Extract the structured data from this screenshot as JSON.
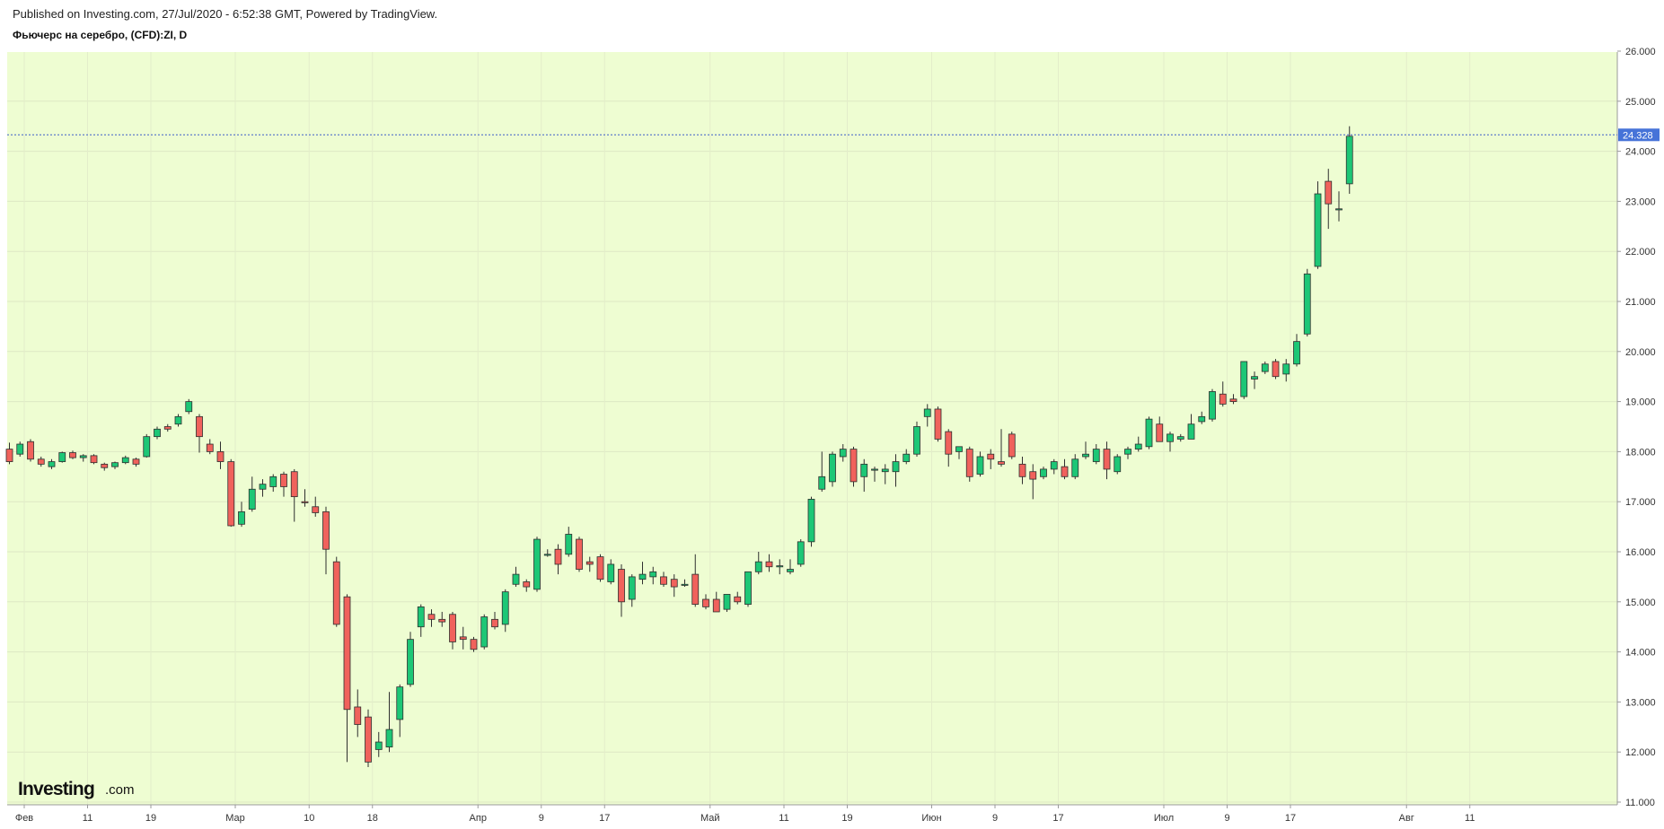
{
  "header": {
    "published": "Published on Investing.com, 27/Jul/2020 - 6:52:38 GMT, Powered by TradingView.",
    "symbol": "Фьючерс на серебро, (CFD):ZI, D"
  },
  "logo": {
    "main": "Investing",
    "sub": ".com"
  },
  "colors": {
    "background": "#eefdd2",
    "up": "#1dc776",
    "down": "#f0625c",
    "wick": "#2f2f2f",
    "last_price_line": "#3d5fc8",
    "last_price_tag": "#4673d8"
  },
  "last_price": {
    "value": 24.328,
    "label": "24.328"
  },
  "chart_data": {
    "type": "candlestick",
    "title": "Фьючерс на серебро, (CFD):ZI, D",
    "ylim": [
      11.0,
      26.0
    ],
    "y_ticks": [
      "11.000",
      "12.000",
      "13.000",
      "14.000",
      "15.000",
      "16.000",
      "17.000",
      "18.000",
      "19.000",
      "20.000",
      "21.000",
      "22.000",
      "23.000",
      "24.000",
      "25.000",
      "26.000"
    ],
    "x_ticks": [
      {
        "index": 0,
        "label": "Фев"
      },
      {
        "index": 6,
        "label": "11"
      },
      {
        "index": 12,
        "label": "19"
      },
      {
        "index": 20,
        "label": "Мар"
      },
      {
        "index": 27,
        "label": "10"
      },
      {
        "index": 33,
        "label": "18"
      },
      {
        "index": 43,
        "label": "Апр"
      },
      {
        "index": 49,
        "label": "9"
      },
      {
        "index": 55,
        "label": "17"
      },
      {
        "index": 65,
        "label": "Май"
      },
      {
        "index": 72,
        "label": "11"
      },
      {
        "index": 78,
        "label": "19"
      },
      {
        "index": 86,
        "label": "Июн"
      },
      {
        "index": 92,
        "label": "9"
      },
      {
        "index": 98,
        "label": "17"
      },
      {
        "index": 108,
        "label": "Июл"
      },
      {
        "index": 114,
        "label": "9"
      },
      {
        "index": 120,
        "label": "17"
      },
      {
        "index": 131,
        "label": "Авг"
      },
      {
        "index": 137,
        "label": "11"
      }
    ],
    "candles": [
      {
        "o": 18.05,
        "h": 18.18,
        "l": 17.75,
        "c": 17.8
      },
      {
        "o": 17.95,
        "h": 18.2,
        "l": 17.9,
        "c": 18.15
      },
      {
        "o": 18.2,
        "h": 18.25,
        "l": 17.8,
        "c": 17.85
      },
      {
        "o": 17.85,
        "h": 17.9,
        "l": 17.7,
        "c": 17.75
      },
      {
        "o": 17.7,
        "h": 17.85,
        "l": 17.65,
        "c": 17.8
      },
      {
        "o": 17.8,
        "h": 18.0,
        "l": 17.78,
        "c": 17.98
      },
      {
        "o": 17.98,
        "h": 18.02,
        "l": 17.85,
        "c": 17.88
      },
      {
        "o": 17.88,
        "h": 17.95,
        "l": 17.8,
        "c": 17.92
      },
      {
        "o": 17.92,
        "h": 17.95,
        "l": 17.75,
        "c": 17.78
      },
      {
        "o": 17.75,
        "h": 17.78,
        "l": 17.62,
        "c": 17.68
      },
      {
        "o": 17.7,
        "h": 17.8,
        "l": 17.65,
        "c": 17.78
      },
      {
        "o": 17.78,
        "h": 17.92,
        "l": 17.75,
        "c": 17.88
      },
      {
        "o": 17.85,
        "h": 17.88,
        "l": 17.7,
        "c": 17.75
      },
      {
        "o": 17.9,
        "h": 18.35,
        "l": 17.88,
        "c": 18.3
      },
      {
        "o": 18.3,
        "h": 18.5,
        "l": 18.25,
        "c": 18.45
      },
      {
        "o": 18.5,
        "h": 18.55,
        "l": 18.4,
        "c": 18.45
      },
      {
        "o": 18.55,
        "h": 18.75,
        "l": 18.5,
        "c": 18.7
      },
      {
        "o": 18.8,
        "h": 19.05,
        "l": 18.75,
        "c": 19.0
      },
      {
        "o": 18.7,
        "h": 18.75,
        "l": 17.98,
        "c": 18.3
      },
      {
        "o": 18.15,
        "h": 18.25,
        "l": 17.95,
        "c": 18.0
      },
      {
        "o": 18.0,
        "h": 18.2,
        "l": 17.65,
        "c": 17.8
      },
      {
        "o": 17.8,
        "h": 17.85,
        "l": 16.5,
        "c": 16.52
      },
      {
        "o": 16.55,
        "h": 17.0,
        "l": 16.5,
        "c": 16.8
      },
      {
        "o": 16.85,
        "h": 17.5,
        "l": 16.8,
        "c": 17.25
      },
      {
        "o": 17.25,
        "h": 17.45,
        "l": 17.1,
        "c": 17.35
      },
      {
        "o": 17.3,
        "h": 17.55,
        "l": 17.2,
        "c": 17.5
      },
      {
        "o": 17.55,
        "h": 17.6,
        "l": 17.1,
        "c": 17.3
      },
      {
        "o": 17.6,
        "h": 17.65,
        "l": 16.6,
        "c": 17.1
      },
      {
        "o": 17.0,
        "h": 17.25,
        "l": 16.9,
        "c": 16.98
      },
      {
        "o": 16.9,
        "h": 17.1,
        "l": 16.7,
        "c": 16.78
      },
      {
        "o": 16.8,
        "h": 16.9,
        "l": 15.55,
        "c": 16.05
      },
      {
        "o": 15.8,
        "h": 15.9,
        "l": 14.5,
        "c": 14.55
      },
      {
        "o": 15.1,
        "h": 15.15,
        "l": 11.8,
        "c": 12.85
      },
      {
        "o": 12.9,
        "h": 13.25,
        "l": 12.3,
        "c": 12.55
      },
      {
        "o": 12.7,
        "h": 12.85,
        "l": 11.7,
        "c": 11.8
      },
      {
        "o": 12.05,
        "h": 12.4,
        "l": 11.9,
        "c": 12.2
      },
      {
        "o": 12.1,
        "h": 13.2,
        "l": 12.0,
        "c": 12.45
      },
      {
        "o": 12.65,
        "h": 13.35,
        "l": 12.3,
        "c": 13.3
      },
      {
        "o": 13.35,
        "h": 14.4,
        "l": 13.3,
        "c": 14.25
      },
      {
        "o": 14.5,
        "h": 14.95,
        "l": 14.3,
        "c": 14.9
      },
      {
        "o": 14.75,
        "h": 14.85,
        "l": 14.5,
        "c": 14.65
      },
      {
        "o": 14.65,
        "h": 14.8,
        "l": 14.5,
        "c": 14.6
      },
      {
        "o": 14.75,
        "h": 14.8,
        "l": 14.05,
        "c": 14.2
      },
      {
        "o": 14.3,
        "h": 14.5,
        "l": 14.05,
        "c": 14.25
      },
      {
        "o": 14.25,
        "h": 14.3,
        "l": 14.0,
        "c": 14.05
      },
      {
        "o": 14.1,
        "h": 14.75,
        "l": 14.05,
        "c": 14.7
      },
      {
        "o": 14.65,
        "h": 14.8,
        "l": 14.45,
        "c": 14.5
      },
      {
        "o": 14.55,
        "h": 15.25,
        "l": 14.4,
        "c": 15.2
      },
      {
        "o": 15.35,
        "h": 15.7,
        "l": 15.3,
        "c": 15.55
      },
      {
        "o": 15.4,
        "h": 15.45,
        "l": 15.2,
        "c": 15.3
      },
      {
        "o": 15.25,
        "h": 16.3,
        "l": 15.2,
        "c": 16.25
      },
      {
        "o": 15.95,
        "h": 16.05,
        "l": 15.9,
        "c": 15.95
      },
      {
        "o": 16.05,
        "h": 16.15,
        "l": 15.55,
        "c": 15.75
      },
      {
        "o": 15.95,
        "h": 16.5,
        "l": 15.9,
        "c": 16.35
      },
      {
        "o": 16.25,
        "h": 16.3,
        "l": 15.6,
        "c": 15.65
      },
      {
        "o": 15.8,
        "h": 15.9,
        "l": 15.6,
        "c": 15.75
      },
      {
        "o": 15.9,
        "h": 15.95,
        "l": 15.4,
        "c": 15.45
      },
      {
        "o": 15.4,
        "h": 15.85,
        "l": 15.35,
        "c": 15.75
      },
      {
        "o": 15.65,
        "h": 15.75,
        "l": 14.7,
        "c": 15.0
      },
      {
        "o": 15.05,
        "h": 15.55,
        "l": 14.9,
        "c": 15.5
      },
      {
        "o": 15.45,
        "h": 15.8,
        "l": 15.35,
        "c": 15.55
      },
      {
        "o": 15.5,
        "h": 15.7,
        "l": 15.35,
        "c": 15.6
      },
      {
        "o": 15.5,
        "h": 15.6,
        "l": 15.3,
        "c": 15.35
      },
      {
        "o": 15.45,
        "h": 15.55,
        "l": 15.1,
        "c": 15.3
      },
      {
        "o": 15.35,
        "h": 15.45,
        "l": 15.3,
        "c": 15.35
      },
      {
        "o": 15.55,
        "h": 15.95,
        "l": 14.9,
        "c": 14.95
      },
      {
        "o": 15.05,
        "h": 15.15,
        "l": 14.85,
        "c": 14.9
      },
      {
        "o": 15.05,
        "h": 15.2,
        "l": 14.8,
        "c": 14.8
      },
      {
        "o": 14.85,
        "h": 15.15,
        "l": 14.8,
        "c": 15.15
      },
      {
        "o": 15.1,
        "h": 15.2,
        "l": 14.95,
        "c": 15.0
      },
      {
        "o": 14.95,
        "h": 15.6,
        "l": 14.9,
        "c": 15.6
      },
      {
        "o": 15.6,
        "h": 16.0,
        "l": 15.55,
        "c": 15.8
      },
      {
        "o": 15.8,
        "h": 15.95,
        "l": 15.6,
        "c": 15.7
      },
      {
        "o": 15.7,
        "h": 15.85,
        "l": 15.55,
        "c": 15.72
      },
      {
        "o": 15.6,
        "h": 15.85,
        "l": 15.55,
        "c": 15.65
      },
      {
        "o": 15.75,
        "h": 16.25,
        "l": 15.7,
        "c": 16.2
      },
      {
        "o": 16.2,
        "h": 17.1,
        "l": 16.1,
        "c": 17.05
      },
      {
        "o": 17.25,
        "h": 18.0,
        "l": 17.2,
        "c": 17.5
      },
      {
        "o": 17.4,
        "h": 18.0,
        "l": 17.3,
        "c": 17.95
      },
      {
        "o": 17.9,
        "h": 18.15,
        "l": 17.8,
        "c": 18.05
      },
      {
        "o": 18.05,
        "h": 18.1,
        "l": 17.3,
        "c": 17.4
      },
      {
        "o": 17.5,
        "h": 17.85,
        "l": 17.2,
        "c": 17.75
      },
      {
        "o": 17.65,
        "h": 17.7,
        "l": 17.4,
        "c": 17.65
      },
      {
        "o": 17.6,
        "h": 17.75,
        "l": 17.35,
        "c": 17.65
      },
      {
        "o": 17.6,
        "h": 17.95,
        "l": 17.3,
        "c": 17.8
      },
      {
        "o": 17.8,
        "h": 18.05,
        "l": 17.75,
        "c": 17.95
      },
      {
        "o": 17.95,
        "h": 18.6,
        "l": 17.9,
        "c": 18.5
      },
      {
        "o": 18.7,
        "h": 18.95,
        "l": 18.5,
        "c": 18.85
      },
      {
        "o": 18.85,
        "h": 18.9,
        "l": 18.2,
        "c": 18.25
      },
      {
        "o": 18.4,
        "h": 18.45,
        "l": 17.7,
        "c": 17.95
      },
      {
        "o": 18.0,
        "h": 18.1,
        "l": 17.85,
        "c": 18.1
      },
      {
        "o": 18.05,
        "h": 18.1,
        "l": 17.4,
        "c": 17.5
      },
      {
        "o": 17.55,
        "h": 18.0,
        "l": 17.5,
        "c": 17.9
      },
      {
        "o": 17.95,
        "h": 18.05,
        "l": 17.65,
        "c": 17.85
      },
      {
        "o": 17.8,
        "h": 18.45,
        "l": 17.7,
        "c": 17.75
      },
      {
        "o": 18.35,
        "h": 18.4,
        "l": 17.85,
        "c": 17.9
      },
      {
        "o": 17.75,
        "h": 17.9,
        "l": 17.35,
        "c": 17.5
      },
      {
        "o": 17.6,
        "h": 17.75,
        "l": 17.05,
        "c": 17.45
      },
      {
        "o": 17.5,
        "h": 17.7,
        "l": 17.45,
        "c": 17.65
      },
      {
        "o": 17.65,
        "h": 17.85,
        "l": 17.55,
        "c": 17.8
      },
      {
        "o": 17.7,
        "h": 17.85,
        "l": 17.45,
        "c": 17.5
      },
      {
        "o": 17.5,
        "h": 17.95,
        "l": 17.45,
        "c": 17.85
      },
      {
        "o": 17.9,
        "h": 18.2,
        "l": 17.85,
        "c": 17.95
      },
      {
        "o": 17.8,
        "h": 18.15,
        "l": 17.75,
        "c": 18.05
      },
      {
        "o": 18.05,
        "h": 18.2,
        "l": 17.45,
        "c": 17.65
      },
      {
        "o": 17.6,
        "h": 17.95,
        "l": 17.55,
        "c": 17.9
      },
      {
        "o": 17.95,
        "h": 18.1,
        "l": 17.85,
        "c": 18.05
      },
      {
        "o": 18.05,
        "h": 18.3,
        "l": 18.0,
        "c": 18.15
      },
      {
        "o": 18.1,
        "h": 18.7,
        "l": 18.05,
        "c": 18.65
      },
      {
        "o": 18.55,
        "h": 18.7,
        "l": 18.2,
        "c": 18.2
      },
      {
        "o": 18.2,
        "h": 18.4,
        "l": 18.0,
        "c": 18.35
      },
      {
        "o": 18.25,
        "h": 18.35,
        "l": 18.2,
        "c": 18.3
      },
      {
        "o": 18.25,
        "h": 18.75,
        "l": 18.25,
        "c": 18.55
      },
      {
        "o": 18.6,
        "h": 18.8,
        "l": 18.55,
        "c": 18.7
      },
      {
        "o": 18.65,
        "h": 19.25,
        "l": 18.6,
        "c": 19.2
      },
      {
        "o": 19.15,
        "h": 19.4,
        "l": 18.9,
        "c": 18.95
      },
      {
        "o": 19.05,
        "h": 19.15,
        "l": 18.95,
        "c": 19.0
      },
      {
        "o": 19.1,
        "h": 19.8,
        "l": 19.05,
        "c": 19.8
      },
      {
        "o": 19.45,
        "h": 19.6,
        "l": 19.25,
        "c": 19.5
      },
      {
        "o": 19.6,
        "h": 19.8,
        "l": 19.55,
        "c": 19.75
      },
      {
        "o": 19.8,
        "h": 19.85,
        "l": 19.45,
        "c": 19.5
      },
      {
        "o": 19.55,
        "h": 19.85,
        "l": 19.4,
        "c": 19.75
      },
      {
        "o": 19.75,
        "h": 20.35,
        "l": 19.7,
        "c": 20.2
      },
      {
        "o": 20.35,
        "h": 21.65,
        "l": 20.3,
        "c": 21.55
      },
      {
        "o": 21.7,
        "h": 23.4,
        "l": 21.65,
        "c": 23.15
      },
      {
        "o": 23.4,
        "h": 23.65,
        "l": 22.45,
        "c": 22.95
      },
      {
        "o": 22.85,
        "h": 23.2,
        "l": 22.6,
        "c": 22.85
      },
      {
        "o": 23.35,
        "h": 24.5,
        "l": 23.15,
        "c": 24.3
      }
    ]
  }
}
